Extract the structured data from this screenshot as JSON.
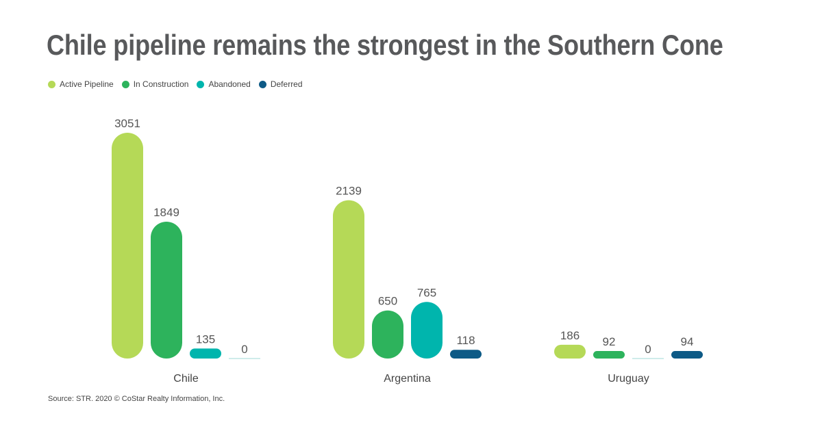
{
  "chart_data": {
    "type": "bar",
    "title": "Chile pipeline remains the strongest in the Southern Cone",
    "categories": [
      "Chile",
      "Argentina",
      "Uruguay"
    ],
    "series": [
      {
        "name": "Active Pipeline",
        "color": "#b5d957",
        "values": [
          3051,
          2139,
          186
        ]
      },
      {
        "name": "In Construction",
        "color": "#2db35c",
        "values": [
          1849,
          650,
          92
        ]
      },
      {
        "name": "Abandoned",
        "color": "#00b5ad",
        "values": [
          135,
          765,
          0
        ]
      },
      {
        "name": "Deferred",
        "color": "#0d5a86",
        "values": [
          0,
          118,
          94
        ]
      }
    ],
    "legend_position": "top-left",
    "grid": false,
    "ylim": [
      0,
      3051
    ],
    "source": "Source: STR. 2020 © CoStar Realty Information, Inc."
  }
}
